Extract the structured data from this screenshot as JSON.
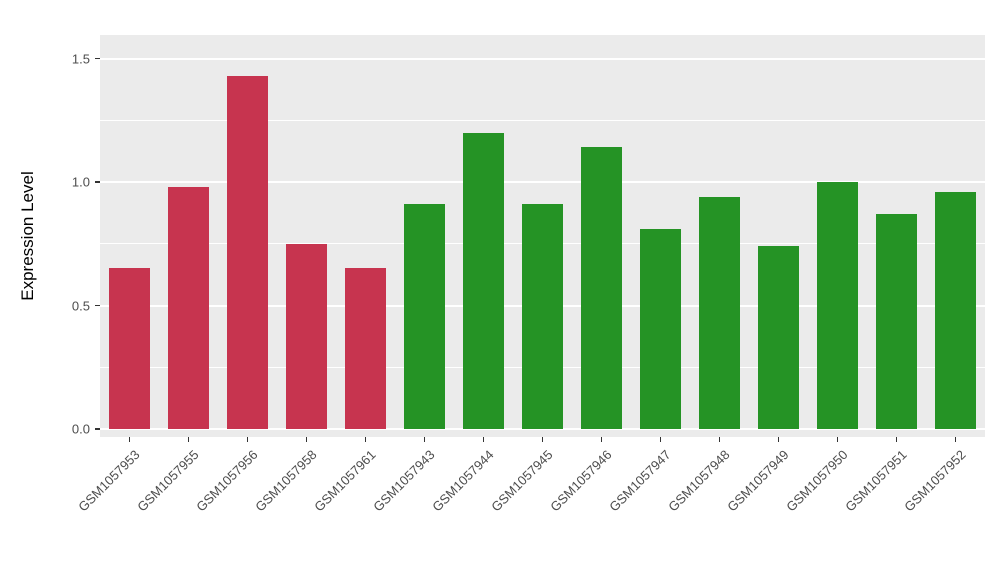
{
  "chart_data": {
    "type": "bar",
    "title": "",
    "xlabel": "",
    "ylabel": "Expression Level",
    "ylim": [
      0,
      1.5
    ],
    "yticks": [
      0.0,
      0.5,
      1.0,
      1.5
    ],
    "yticks_minor": [
      0.25,
      0.75,
      1.25
    ],
    "grid": "on",
    "legend_position": "none",
    "panel_background": "#EBEBEB",
    "gridline_color": "#ffffff",
    "categories": [
      "GSM1057953",
      "GSM1057955",
      "GSM1057956",
      "GSM1057958",
      "GSM1057961",
      "GSM1057943",
      "GSM1057944",
      "GSM1057945",
      "GSM1057946",
      "GSM1057947",
      "GSM1057948",
      "GSM1057949",
      "GSM1057950",
      "GSM1057951",
      "GSM1057952"
    ],
    "values": [
      0.65,
      0.98,
      1.43,
      0.75,
      0.65,
      0.91,
      1.2,
      0.91,
      1.14,
      0.81,
      0.94,
      0.74,
      1.0,
      0.87,
      0.96
    ],
    "groups": [
      "red",
      "red",
      "red",
      "red",
      "red",
      "green",
      "green",
      "green",
      "green",
      "green",
      "green",
      "green",
      "green",
      "green",
      "green"
    ],
    "group_colors": {
      "red": "#C7344F",
      "green": "#259325"
    }
  }
}
